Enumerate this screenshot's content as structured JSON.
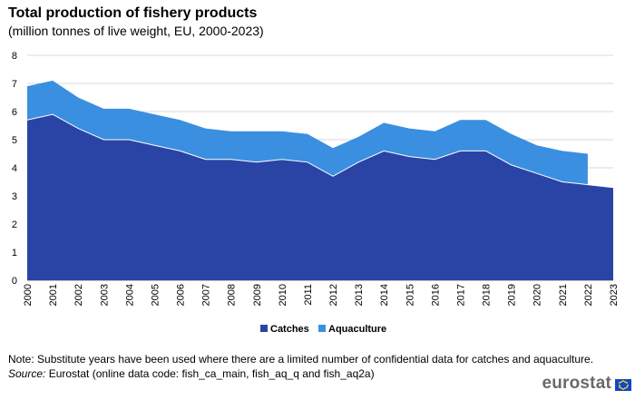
{
  "title": "Total production of fishery products",
  "subtitle": "(million  tonnes of live weight, EU, 2000-2023)",
  "note": "Note: Substitute years have been used where there are a limited number of confidential data for catches and aquaculture.",
  "source_label": "Source:",
  "source_text": " Eurostat (online data code: fish_ca_main, fish_aq_q and fish_aq2a)",
  "brand": "eurostat",
  "chart_data": {
    "type": "area",
    "stacked": true,
    "categories": [
      "2000",
      "2001",
      "2002",
      "2003",
      "2004",
      "2005",
      "2006",
      "2007",
      "2008",
      "2009",
      "2010",
      "2011",
      "2012",
      "2013",
      "2014",
      "2015",
      "2016",
      "2017",
      "2018",
      "2019",
      "2020",
      "2021",
      "2022",
      "2023"
    ],
    "series": [
      {
        "name": "Catches",
        "color": "#2a44a6",
        "values": [
          5.7,
          5.9,
          5.4,
          5.0,
          5.0,
          4.8,
          4.6,
          4.3,
          4.3,
          4.2,
          4.3,
          4.2,
          3.7,
          4.2,
          4.6,
          4.4,
          4.3,
          4.6,
          4.6,
          4.1,
          3.8,
          3.5,
          3.4,
          3.3
        ]
      },
      {
        "name": "Aquaculture",
        "color": "#3b8fe0",
        "values": [
          1.2,
          1.2,
          1.1,
          1.1,
          1.1,
          1.1,
          1.1,
          1.1,
          1.0,
          1.1,
          1.0,
          1.0,
          1.0,
          0.9,
          1.0,
          1.0,
          1.0,
          1.1,
          1.1,
          1.1,
          1.0,
          1.1,
          1.1,
          null
        ]
      }
    ],
    "yticks": [
      0,
      1,
      2,
      3,
      4,
      5,
      6,
      7,
      8
    ],
    "ylim": [
      0,
      8
    ],
    "grid": true,
    "legend": "bottom-center"
  }
}
